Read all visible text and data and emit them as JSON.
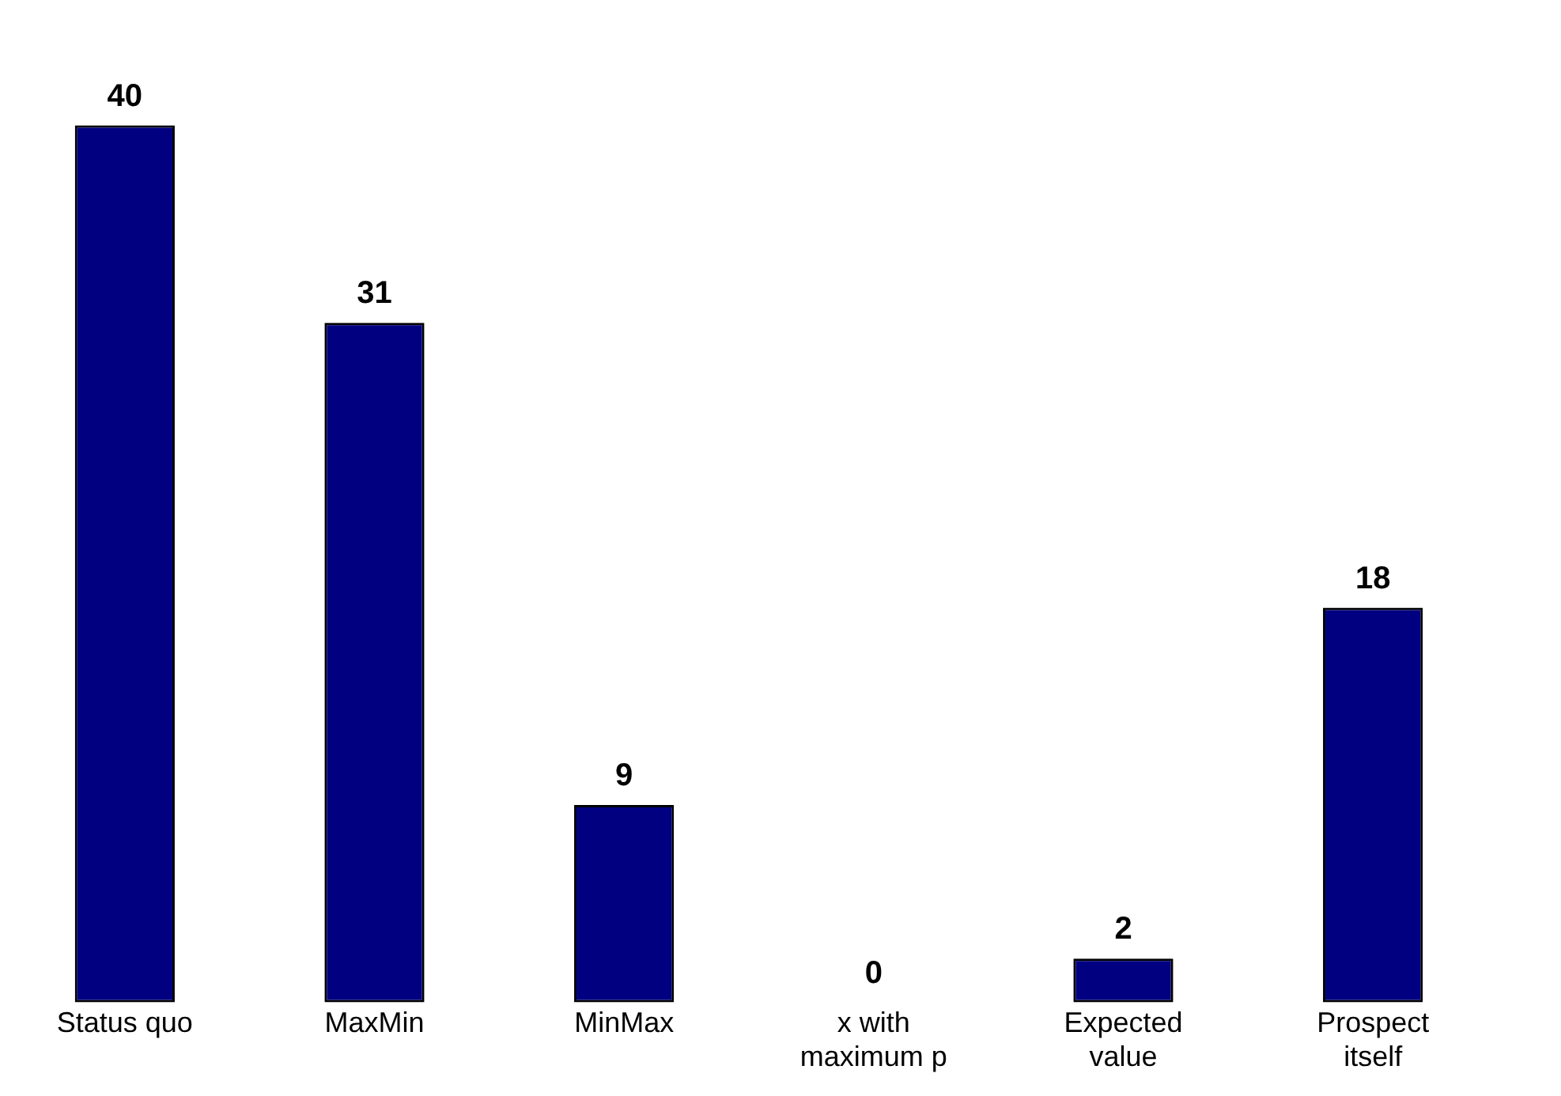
{
  "chart_data": {
    "type": "bar",
    "categories": [
      "Status quo",
      "MaxMin",
      "MinMax",
      "x with maximum p",
      "Expected value",
      "Prospect itself"
    ],
    "values": [
      40,
      31,
      9,
      0,
      2,
      18
    ],
    "color": "#000080",
    "data_labels": true,
    "grid": false,
    "legend": false
  }
}
